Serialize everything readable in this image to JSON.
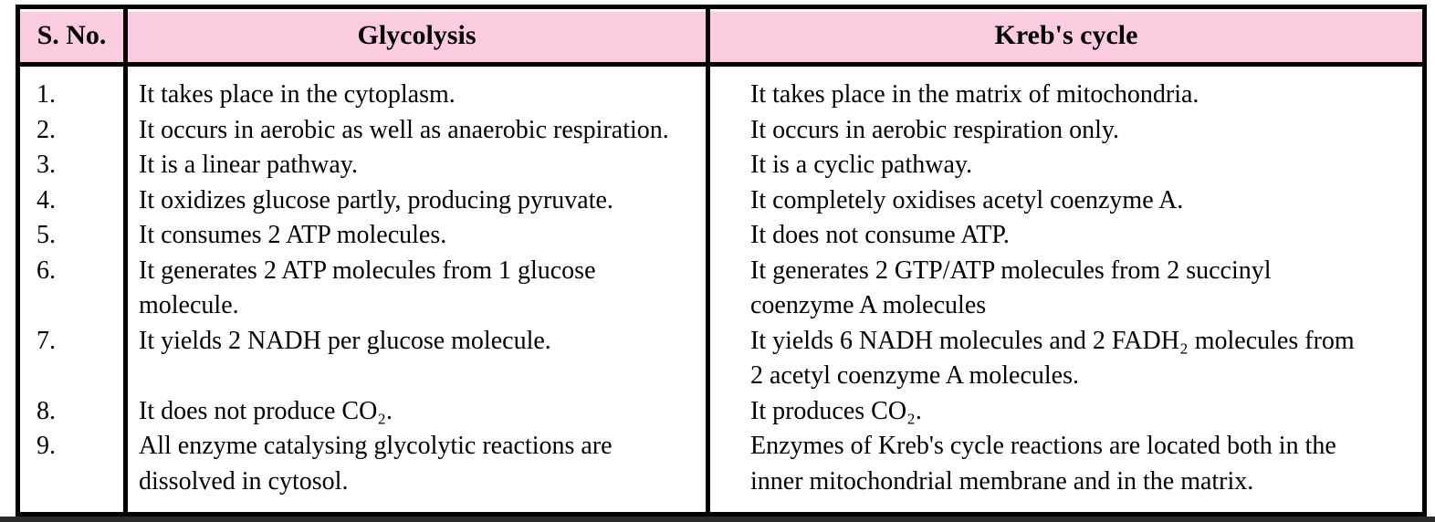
{
  "colors": {
    "header_pink": "#FBCCE1",
    "border_black": "#000000",
    "background": "#ffffff"
  },
  "table": {
    "headers": [
      "S. No.",
      "Glycolysis",
      "Kreb's cycle"
    ],
    "rows": [
      {
        "no": "1.",
        "glycolysis": "It takes place in the cytoplasm.",
        "krebs": "It takes place in the matrix of mitochondria."
      },
      {
        "no": "2.",
        "glycolysis": "It occurs in aerobic as well as anaerobic respiration.",
        "krebs": "It occurs in aerobic respiration only."
      },
      {
        "no": "3.",
        "glycolysis": "It is a linear pathway.",
        "krebs": "It is a cyclic pathway."
      },
      {
        "no": "4.",
        "glycolysis": "It oxidizes glucose partly, producing pyruvate.",
        "krebs": "It completely oxidises acetyl coenzyme A."
      },
      {
        "no": "5.",
        "glycolysis": "It consumes 2 ATP molecules.",
        "krebs": "It does not consume ATP."
      },
      {
        "no": "6.",
        "glycolysis": "It generates 2 ATP molecules from 1 glucose\nmolecule.",
        "krebs": "It generates 2 GTP/ATP molecules from 2 succinyl\ncoenzyme A molecules"
      },
      {
        "no": "7.",
        "glycolysis": "It yields 2 NADH per glucose molecule.",
        "krebs": "It yields 6 NADH molecules and 2 FADH₂ molecules from\n2 acetyl coenzyme A molecules."
      },
      {
        "no": "8.",
        "glycolysis": "It does not produce CO₂.",
        "krebs": "It produces CO₂."
      },
      {
        "no": "9.",
        "glycolysis": "All enzyme catalysing glycolytic reactions are\ndissolved in cytosol.",
        "krebs": "Enzymes of Kreb's cycle reactions are located both in the\ninner mitochondrial membrane and in the matrix."
      }
    ]
  }
}
